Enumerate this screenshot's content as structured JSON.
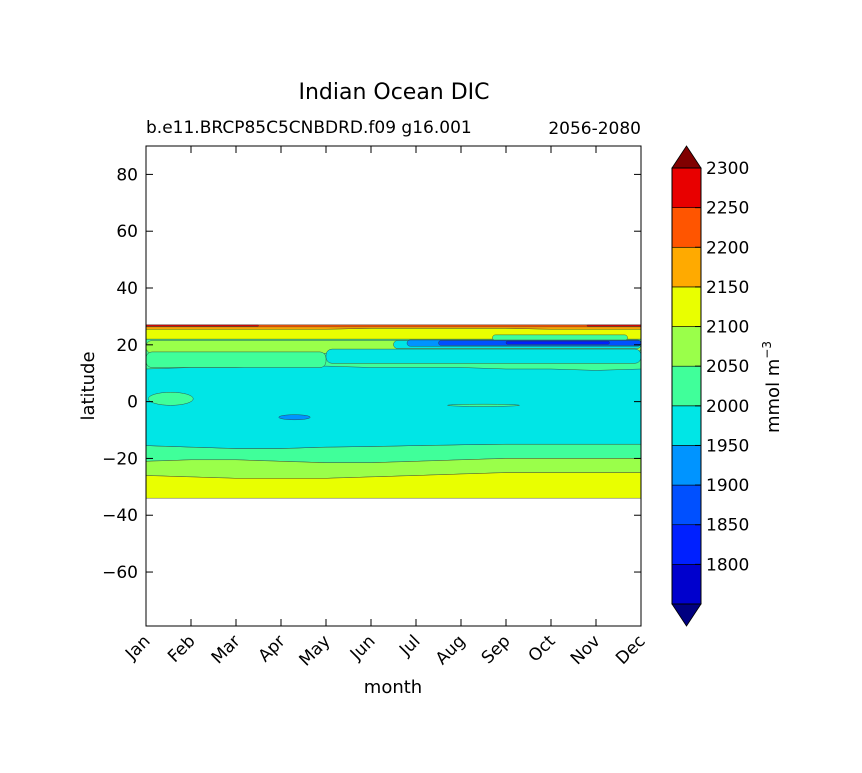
{
  "chart_data": {
    "type": "contour",
    "title": "Indian Ocean DIC",
    "subtitle_left": "b.e11.BRCP85C5CNBDRD.f09 g16.001",
    "subtitle_right": "2056-2080",
    "xlabel": "month",
    "ylabel": "latitude",
    "x_categories": [
      "Jan",
      "Feb",
      "Mar",
      "Apr",
      "May",
      "Jun",
      "Jul",
      "Aug",
      "Sep",
      "Oct",
      "Nov",
      "Dec"
    ],
    "ylim": [
      -79,
      90
    ],
    "yticks": [
      80,
      60,
      40,
      20,
      0,
      -20,
      -40,
      -60
    ],
    "data_lat_range": [
      -34,
      27
    ],
    "colorbar": {
      "label": "mmol m",
      "label_superscript": "−3",
      "levels": [
        1800,
        1850,
        1900,
        1950,
        2000,
        2050,
        2100,
        2150,
        2200,
        2250,
        2300
      ],
      "tick_labels": [
        "1800",
        "1850",
        "1900",
        "1950",
        "2000",
        "2050",
        "2100",
        "2150",
        "2200",
        "2250",
        "2300"
      ],
      "extend": "both",
      "colors": [
        "#000080",
        "#0000cd",
        "#0020ff",
        "#0050ff",
        "#0094ff",
        "#00e6e6",
        "#40ff9a",
        "#9aff4a",
        "#e9ff00",
        "#ffaa00",
        "#ff5500",
        "#e80000",
        "#800000"
      ]
    },
    "bands": [
      {
        "value_bin": "2000-2050",
        "color": "#40ff9a",
        "lat_south": [
          -21,
          -20.5,
          -20.5,
          -21,
          -21.5,
          -21.5,
          -21,
          -20.5,
          -20,
          -20,
          -20,
          -20
        ],
        "lat_north": [
          -15.5,
          -16,
          -16.5,
          -16.5,
          -16,
          -15.8,
          -15.5,
          -15.2,
          -15,
          -15,
          -15,
          -15
        ]
      },
      {
        "value_bin": "2050-2100",
        "color": "#9aff4a",
        "lat_south": [
          -26,
          -26.5,
          -27,
          -27,
          -27,
          -26.5,
          -26,
          -25.5,
          -25,
          -25,
          -25,
          -25
        ],
        "lat_north": [
          -21,
          -20.5,
          -20.5,
          -21,
          -21.5,
          -21.5,
          -21,
          -20.5,
          -20,
          -20,
          -20,
          -20
        ]
      },
      {
        "value_bin": "2100-2150",
        "color": "#e9ff00",
        "lat_south": [
          -34,
          -34,
          -34,
          -34,
          -34,
          -34,
          -34,
          -34,
          -34,
          -34,
          -34,
          -34
        ],
        "lat_north": [
          -26,
          -26.5,
          -27,
          -27,
          -27,
          -26.5,
          -26,
          -25.5,
          -25,
          -25,
          -25,
          -25
        ]
      },
      {
        "value_bin": "1950-2000",
        "color": "#00e6e6",
        "lat_south": [
          -15.5,
          -16,
          -16.5,
          -16.5,
          -16,
          -15.8,
          -15.5,
          -15.2,
          -15,
          -15,
          -15,
          -15
        ],
        "lat_north": [
          22,
          22,
          22,
          22,
          22,
          22,
          22,
          22,
          22,
          22,
          22,
          22
        ]
      },
      {
        "value_bin": "2000-2050",
        "color": "#40ff9a",
        "lat_south": [
          11.5,
          12,
          12,
          12.5,
          12.5,
          12,
          12,
          12,
          11.5,
          11.5,
          11,
          11.5
        ],
        "lat_north": [
          22,
          22,
          22,
          22,
          22,
          22,
          22,
          22,
          22,
          22,
          22,
          22
        ]
      },
      {
        "value_bin": "2100-2150",
        "color": "#e9ff00",
        "lat_south": [
          22,
          22,
          22,
          22,
          22,
          22,
          22,
          22,
          22,
          22,
          22,
          22
        ],
        "lat_north": [
          25.5,
          25.5,
          25.5,
          25.5,
          25.5,
          25.8,
          25.8,
          25.8,
          25.8,
          25.5,
          25.5,
          25.5
        ]
      },
      {
        "value_bin": "2150-2200",
        "color": "#ffaa00",
        "lat_south": [
          25.5,
          25.5,
          25.5,
          25.5,
          25.5,
          25.8,
          25.8,
          25.8,
          25.8,
          25.5,
          25.5,
          25.5
        ],
        "lat_north": [
          27,
          27,
          27,
          27,
          27,
          27,
          27,
          27,
          27,
          27,
          27,
          27
        ]
      }
    ],
    "features": [
      {
        "value_bin": "2050-2100",
        "color": "#9aff4a",
        "shape": "strip",
        "months": [
          0,
          11
        ],
        "lat": [
          17,
          21.5
        ]
      },
      {
        "value_bin": "2000-2050",
        "color": "#40ff9a",
        "shape": "strip",
        "months": [
          0,
          4
        ],
        "lat": [
          12,
          17.5
        ]
      },
      {
        "value_bin": "1950-2000",
        "color": "#00e6e6",
        "shape": "strip",
        "months": [
          4,
          11
        ],
        "lat": [
          13.5,
          18.5
        ]
      },
      {
        "value_bin": "2000-2050",
        "color": "#40ff9a",
        "shape": "strip",
        "months": [
          7.7,
          10.7
        ],
        "lat": [
          21.5,
          23.5
        ]
      },
      {
        "value_bin": "1950-2000",
        "color": "#00e6e6",
        "shape": "strip",
        "months": [
          5.5,
          11
        ],
        "lat": [
          18.7,
          21.5
        ]
      },
      {
        "value_bin": "1900-1950",
        "color": "#0094ff",
        "shape": "strip",
        "months": [
          5.8,
          11
        ],
        "lat": [
          19.5,
          21.7
        ]
      },
      {
        "value_bin": "1850-1900",
        "color": "#0050ff",
        "shape": "strip",
        "months": [
          6.5,
          11
        ],
        "lat": [
          19.8,
          21.5
        ]
      },
      {
        "value_bin": "1800-1850",
        "color": "#0020ff",
        "shape": "strip",
        "months": [
          8,
          10.3
        ],
        "lat": [
          20.2,
          21.3
        ]
      },
      {
        "value_bin": "2250-2300",
        "color": "#ff5500",
        "shape": "strip",
        "months": [
          0,
          11
        ],
        "lat": [
          26.3,
          27
        ]
      },
      {
        "value_bin": "2300-2350",
        "color": "#e80000",
        "shape": "strip",
        "months": [
          0,
          2.5
        ],
        "lat": [
          26.5,
          27
        ]
      },
      {
        "value_bin": "2300-2350",
        "color": "#e80000",
        "shape": "strip",
        "months": [
          9.8,
          11
        ],
        "lat": [
          26.5,
          27
        ]
      },
      {
        "value_bin": "2000-2050",
        "color": "#40ff9a",
        "shape": "blob",
        "month": 0.55,
        "lat": 1,
        "dmonth": 0.5,
        "dlat": 2.3
      },
      {
        "value_bin": "1900-1950",
        "color": "#0094ff",
        "shape": "blob",
        "month": 3.3,
        "lat": -5.5,
        "dmonth": 0.35,
        "dlat": 0.9
      },
      {
        "value_bin": "2000-2050",
        "color": "#40ff9a",
        "shape": "blob",
        "month": 7.5,
        "lat": -1.3,
        "dmonth": 0.8,
        "dlat": 0.4
      }
    ]
  }
}
